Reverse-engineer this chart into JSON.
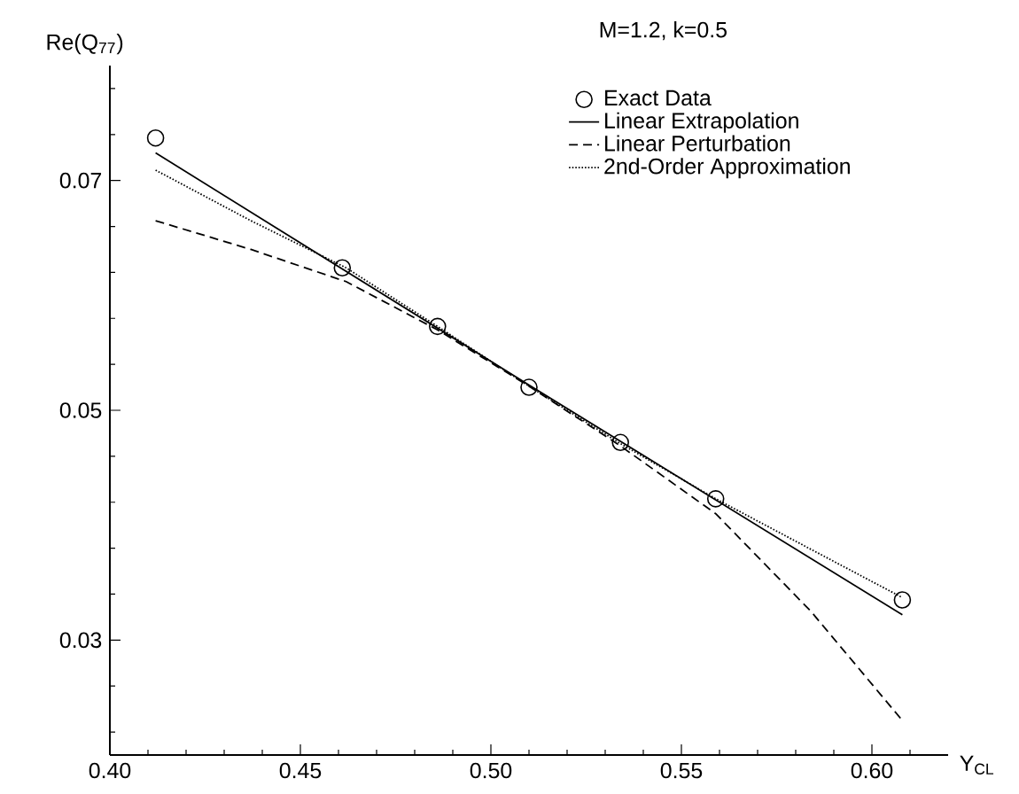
{
  "chart_data": {
    "type": "line",
    "title": "M=1.2,  k=0.5",
    "xlabel": "Y$_{CL}$",
    "ylabel": "Re(Q$_{77}$)",
    "xlim": [
      0.4,
      0.62
    ],
    "ylim": [
      0.02,
      0.08
    ],
    "xticks": [
      {
        "value": 0.4,
        "label": "0.40"
      },
      {
        "value": 0.41,
        "label": null
      },
      {
        "value": 0.42,
        "label": null
      },
      {
        "value": 0.43,
        "label": null
      },
      {
        "value": 0.44,
        "label": null
      },
      {
        "value": 0.45,
        "label": "0.45"
      },
      {
        "value": 0.46,
        "label": null
      },
      {
        "value": 0.47,
        "label": null
      },
      {
        "value": 0.48,
        "label": null
      },
      {
        "value": 0.49,
        "label": null
      },
      {
        "value": 0.5,
        "label": "0.50"
      },
      {
        "value": 0.51,
        "label": null
      },
      {
        "value": 0.52,
        "label": null
      },
      {
        "value": 0.53,
        "label": null
      },
      {
        "value": 0.54,
        "label": null
      },
      {
        "value": 0.55,
        "label": "0.55"
      },
      {
        "value": 0.56,
        "label": null
      },
      {
        "value": 0.57,
        "label": null
      },
      {
        "value": 0.58,
        "label": null
      },
      {
        "value": 0.59,
        "label": null
      },
      {
        "value": 0.6,
        "label": "0.60"
      },
      {
        "value": 0.61,
        "label": null
      }
    ],
    "yticks": [
      {
        "value": 0.022,
        "label": null
      },
      {
        "value": 0.026,
        "label": null
      },
      0.03,
      {
        "value": 0.034,
        "label": null
      },
      {
        "value": 0.038,
        "label": null
      },
      {
        "value": 0.042,
        "label": null
      },
      {
        "value": 0.046,
        "label": null
      },
      0.05,
      {
        "value": 0.054,
        "label": null
      },
      {
        "value": 0.058,
        "label": null
      },
      {
        "value": 0.062,
        "label": null
      },
      {
        "value": 0.066,
        "label": null
      },
      0.07,
      {
        "value": 0.074,
        "label": null
      },
      {
        "value": 0.078,
        "label": null
      }
    ],
    "legend": "top right",
    "grid": false,
    "series": [
      {
        "name": "Exact Data",
        "type": "scatter",
        "marker": "circle",
        "color": "#000000",
        "x": [
          0.412,
          0.461,
          0.486,
          0.51,
          0.534,
          0.559,
          0.608
        ],
        "values": [
          0.0737,
          0.0624,
          0.0573,
          0.052,
          0.0472,
          0.0423,
          0.0335
        ]
      },
      {
        "name": "Linear Extrapolation",
        "line_style": "solid",
        "color": "#000000",
        "x": [
          0.412,
          0.51,
          0.608
        ],
        "values": [
          0.0724,
          0.0522,
          0.0322
        ]
      },
      {
        "name": "Linear Perturbation",
        "line_style": "dashed",
        "color": "#000000",
        "x": [
          0.412,
          0.437,
          0.462,
          0.486,
          0.51,
          0.534,
          0.559,
          0.584,
          0.608
        ],
        "values": [
          0.0665,
          0.064,
          0.0612,
          0.057,
          0.0521,
          0.0469,
          0.041,
          0.0325,
          0.023
        ]
      },
      {
        "name": "2nd-Order Approximation",
        "line_style": "dotted",
        "color": "#000000",
        "x": [
          0.412,
          0.437,
          0.462,
          0.486,
          0.51,
          0.534,
          0.559,
          0.584,
          0.608
        ],
        "values": [
          0.0709,
          0.0665,
          0.0624,
          0.0573,
          0.0521,
          0.0471,
          0.0423,
          0.0379,
          0.0337
        ]
      }
    ]
  }
}
